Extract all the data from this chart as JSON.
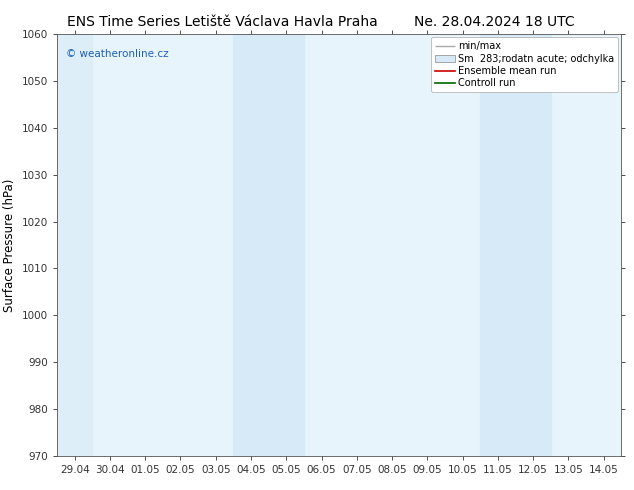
{
  "title": "ENS Time Series Letiště Václava Havla Praha",
  "date_label": "Ne. 28.04.2024 18 UTC",
  "ylabel": "Surface Pressure (hPa)",
  "ylim": [
    970,
    1060
  ],
  "yticks": [
    970,
    980,
    990,
    1000,
    1010,
    1020,
    1030,
    1040,
    1050,
    1060
  ],
  "xtick_labels": [
    "29.04",
    "30.04",
    "01.05",
    "02.05",
    "03.05",
    "04.05",
    "05.05",
    "06.05",
    "07.05",
    "08.05",
    "09.05",
    "10.05",
    "11.05",
    "12.05",
    "13.05",
    "14.05"
  ],
  "shaded_regions": [
    {
      "xstart": 5,
      "xend": 7,
      "color": "#d6eaf8"
    },
    {
      "xstart": 12,
      "xend": 14,
      "color": "#d6eaf8"
    }
  ],
  "plot_left_shaded": {
    "xstart": 0,
    "xend": 1,
    "color": "#d6eaf8"
  },
  "watermark_text": "© weatheronline.cz",
  "watermark_color": "#1a5eb8",
  "legend_items": [
    {
      "label": "min/max",
      "type": "hline",
      "color": "#aaaaaa"
    },
    {
      "label": "Sm  283;rodatn acute; odchylka",
      "type": "box",
      "color": "#d6eaf8"
    },
    {
      "label": "Ensemble mean run",
      "type": "line",
      "color": "#cc0000"
    },
    {
      "label": "Controll run",
      "type": "line",
      "color": "#006600"
    }
  ],
  "background_color": "#ffffff",
  "plot_bg_color": "#e8f4fb",
  "title_fontsize": 10,
  "tick_fontsize": 7.5,
  "ylabel_fontsize": 8.5,
  "legend_fontsize": 7
}
